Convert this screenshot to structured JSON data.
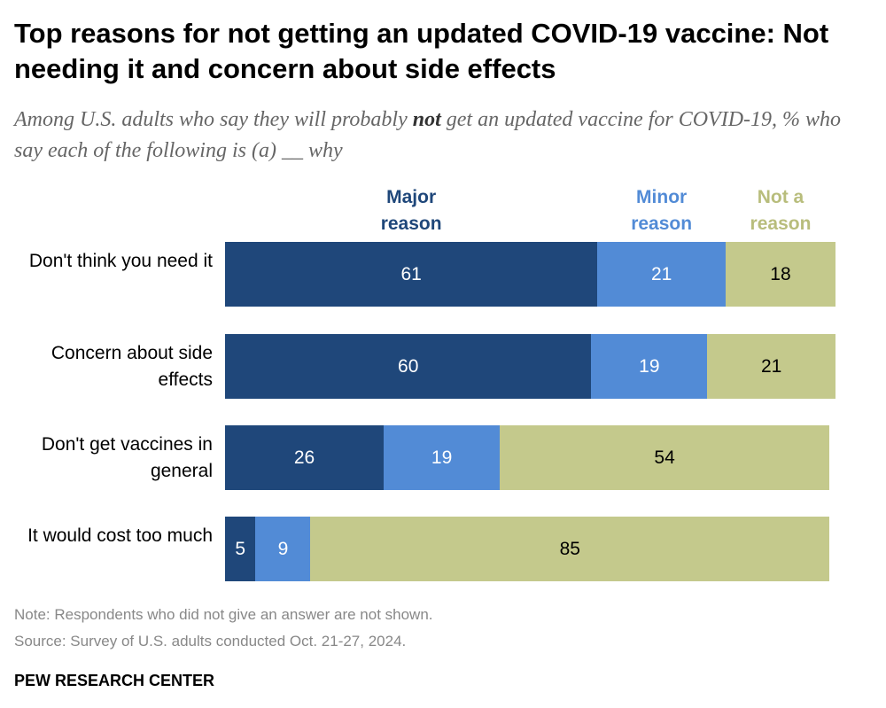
{
  "chart_data": {
    "type": "bar",
    "orientation": "horizontal",
    "stacked": true,
    "title": "Top reasons for not getting an updated COVID-19 vaccine: Not needing it and concern about side effects",
    "subtitle_parts": [
      "Among U.S. adults who say they will probably ",
      "not",
      " get an updated vaccine for COVID-19, % who say each of the following is (a) __ why"
    ],
    "categories": [
      "Don't think you need it",
      "Concern about side effects",
      "Don't get vaccines in general",
      "It would cost too much"
    ],
    "series": [
      {
        "name": "Major reason",
        "color": "#1f477a",
        "text_color": "#ffffff",
        "values": [
          61,
          60,
          26,
          5
        ]
      },
      {
        "name": "Minor reason",
        "color": "#528bd6",
        "text_color": "#ffffff",
        "values": [
          21,
          19,
          19,
          9
        ]
      },
      {
        "name": "Not a reason",
        "color": "#c4c98c",
        "text_color": "#000000",
        "legend_color": "#b8bd7c",
        "values": [
          18,
          21,
          54,
          85
        ]
      }
    ],
    "xlim": [
      0,
      100
    ],
    "grid": false,
    "legend_placement": "top"
  },
  "notes": {
    "note": "Note: Respondents who did not give an answer are not shown.",
    "source": "Source: Survey of U.S. adults conducted Oct. 21-27, 2024."
  },
  "brand": "PEW RESEARCH CENTER"
}
